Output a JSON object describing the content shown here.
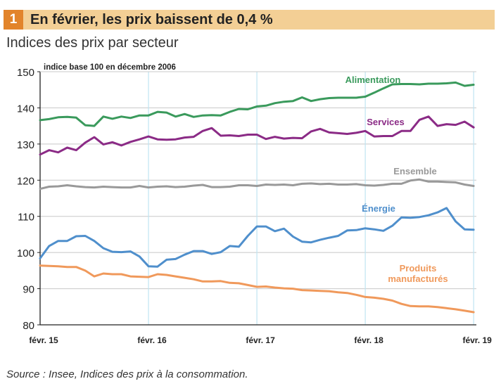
{
  "header": {
    "number": "1",
    "title": "En février, les prix baissent de 0,4 %"
  },
  "subtitle": "Indices des prix par secteur",
  "source": "Source : Insee, Indices des prix à la consommation.",
  "chart_data": {
    "type": "line",
    "unit_note": "indice base 100 en décembre 2006",
    "ylim": [
      80,
      150
    ],
    "yticks": [
      80,
      90,
      100,
      110,
      120,
      130,
      140,
      150
    ],
    "xticks": [
      {
        "label": "févr. 15",
        "t": 0
      },
      {
        "label": "févr. 16",
        "t": 12
      },
      {
        "label": "févr. 17",
        "t": 24
      },
      {
        "label": "févr. 18",
        "t": 36
      },
      {
        "label": "févr. 19",
        "t": 48
      }
    ],
    "x_start": "févr. 15",
    "series": [
      {
        "name": "Alimentation",
        "color": "#3a9a5c",
        "label_lines": [
          "Alimentation"
        ],
        "values": [
          136.6,
          136.9,
          137.4,
          137.5,
          137.3,
          135.2,
          135.0,
          137.6,
          137.0,
          137.6,
          137.2,
          137.9,
          137.9,
          138.9,
          138.7,
          137.6,
          138.3,
          137.5,
          137.9,
          138.0,
          137.9,
          138.9,
          139.7,
          139.6,
          140.4,
          140.6,
          141.3,
          141.7,
          141.9,
          142.9,
          141.9,
          142.4,
          142.7,
          142.8,
          142.8,
          142.8,
          143.1,
          144.2,
          145.4,
          146.5,
          146.6,
          146.6,
          146.5,
          146.7,
          146.7,
          146.8,
          147.0,
          146.1,
          146.4
        ]
      },
      {
        "name": "Services",
        "color": "#8b2b86",
        "label_lines": [
          "Services"
        ],
        "values": [
          127.1,
          128.3,
          127.7,
          129.0,
          128.3,
          130.4,
          131.9,
          129.9,
          130.5,
          129.6,
          130.6,
          131.3,
          132.1,
          131.3,
          131.2,
          131.3,
          131.8,
          132.0,
          133.6,
          134.4,
          132.3,
          132.4,
          132.2,
          132.6,
          132.6,
          131.4,
          132.0,
          131.5,
          131.7,
          131.6,
          133.5,
          134.2,
          133.2,
          133.0,
          132.8,
          133.1,
          133.6,
          132.1,
          132.2,
          132.2,
          133.6,
          133.6,
          136.7,
          137.6,
          135.0,
          135.5,
          135.3,
          136.2,
          134.6
        ]
      },
      {
        "name": "Ensemble",
        "color": "#999999",
        "label_lines": [
          "Ensemble"
        ],
        "values": [
          117.6,
          118.2,
          118.3,
          118.6,
          118.3,
          118.1,
          118.0,
          118.2,
          118.1,
          118.0,
          118.0,
          118.4,
          118.0,
          118.2,
          118.3,
          118.1,
          118.2,
          118.5,
          118.7,
          118.1,
          118.1,
          118.2,
          118.6,
          118.6,
          118.4,
          118.8,
          118.7,
          118.8,
          118.6,
          119.0,
          119.1,
          118.9,
          119.0,
          118.8,
          118.8,
          118.9,
          118.6,
          118.5,
          118.7,
          119.0,
          119.0,
          119.9,
          120.2,
          119.6,
          119.6,
          119.5,
          119.4,
          118.8,
          118.4
        ]
      },
      {
        "name": "Énergie",
        "color": "#4f8fcc",
        "label_lines": [
          "Énergie"
        ],
        "values": [
          98.4,
          101.8,
          103.2,
          103.2,
          104.5,
          104.6,
          103.2,
          101.2,
          100.2,
          100.1,
          100.3,
          98.9,
          96.2,
          96.1,
          98.0,
          98.2,
          99.4,
          100.4,
          100.4,
          99.6,
          100.1,
          101.8,
          101.6,
          104.6,
          107.2,
          107.2,
          105.9,
          106.6,
          104.4,
          103.0,
          102.8,
          103.5,
          104.1,
          104.6,
          106.1,
          106.2,
          106.7,
          106.4,
          106.0,
          107.4,
          109.7,
          109.6,
          109.8,
          110.3,
          111.1,
          112.3,
          108.6,
          106.4,
          106.3
        ]
      },
      {
        "name": "Produits manufacturés",
        "color": "#f0995b",
        "label_lines": [
          "Produits",
          "manufacturés"
        ],
        "values": [
          96.4,
          96.3,
          96.2,
          96.0,
          96.0,
          95.0,
          93.4,
          94.2,
          94.0,
          94.0,
          93.4,
          93.3,
          93.2,
          94.0,
          93.8,
          93.4,
          93.0,
          92.6,
          92.0,
          92.0,
          92.1,
          91.6,
          91.5,
          91.0,
          90.5,
          90.6,
          90.3,
          90.1,
          90.0,
          89.6,
          89.5,
          89.4,
          89.3,
          89.0,
          88.8,
          88.3,
          87.7,
          87.5,
          87.2,
          86.7,
          85.8,
          85.2,
          85.1,
          85.1,
          84.9,
          84.6,
          84.3,
          83.9,
          83.5
        ]
      }
    ]
  }
}
